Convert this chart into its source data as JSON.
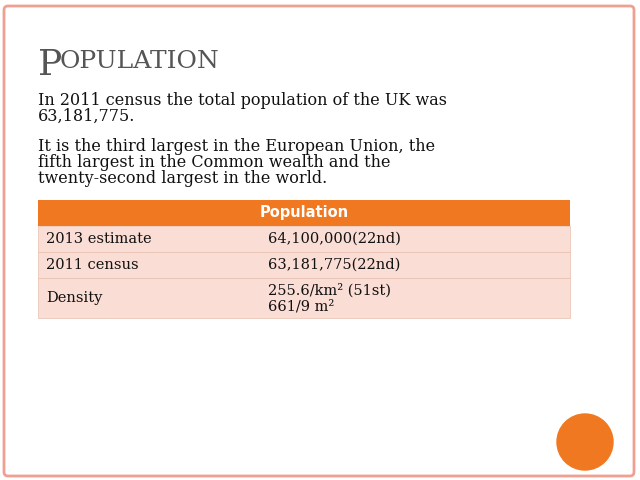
{
  "title_big": "P",
  "title_rest": "OPULATION",
  "para1_line1": "In 2011 census the total population of the UK was",
  "para1_line2": "63,181,775.",
  "para2_line1": "It is the third largest in the European Union, the",
  "para2_line2": "fifth largest in the Common wealth and the",
  "para2_line3": "twenty-second largest in the world.",
  "table_header": "Population",
  "table_header_bg": "#F07820",
  "table_header_color": "#ffffff",
  "table_rows": [
    {
      "label": "2013 estimate",
      "value": "64,100,000(22nd)",
      "value2": null
    },
    {
      "label": "2011 census",
      "value": "63,181,775(22nd)",
      "value2": null
    },
    {
      "label": "Density",
      "value": "255.6/km² (51st)",
      "value2": "661/9 m²"
    }
  ],
  "table_row_bg": "#FADDD4",
  "table_border_color": "#E8C0B0",
  "background_color": "#ffffff",
  "slide_border_color": "#F0A090",
  "title_color": "#555555",
  "body_color": "#111111",
  "circle_color": "#F07820",
  "title_big_fontsize": 26,
  "title_rest_fontsize": 18,
  "body_fontsize": 11.5,
  "table_fontsize": 10.5
}
